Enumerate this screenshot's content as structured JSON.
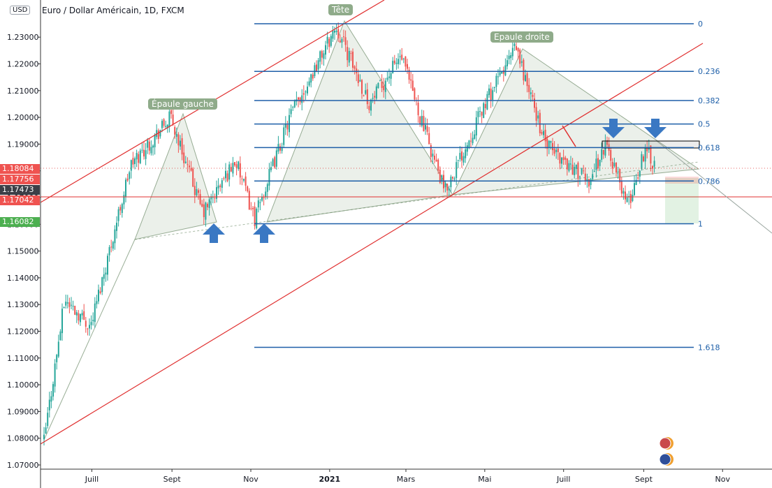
{
  "title": "Euro / Dollar Américain, 1D, FXCM",
  "currency_badge": "USD",
  "colors": {
    "up": "#26a69a",
    "down": "#ef5350",
    "fib": "#1e5fa8",
    "trend": "#e03030",
    "pattern": "#8fab8a",
    "arrow": "#3a78c3"
  },
  "chart_data": {
    "type": "candlestick",
    "title": "Euro / Dollar Américain, 1D, FXCM",
    "ylim": [
      1.07,
      1.24
    ],
    "y_ticks": [
      "1.23000",
      "1.22000",
      "1.21000",
      "1.20000",
      "1.19000",
      "1.18000",
      "1.17000",
      "1.16000",
      "1.15000",
      "1.14000",
      "1.13000",
      "1.12000",
      "1.11000",
      "1.10000",
      "1.09000",
      "1.08000",
      "1.07000"
    ],
    "x_ticks": [
      "Juill",
      "Sept",
      "Nov",
      "2021",
      "Mars",
      "Mai",
      "Juill",
      "Sept",
      "Nov"
    ],
    "price_path": [
      [
        "2020-05-25",
        1.079
      ],
      [
        "2020-06-10",
        1.132
      ],
      [
        "2020-06-30",
        1.122
      ],
      [
        "2020-07-31",
        1.182
      ],
      [
        "2020-08-31",
        1.2
      ],
      [
        "2020-09-25",
        1.164
      ],
      [
        "2020-10-20",
        1.184
      ],
      [
        "2020-11-04",
        1.162
      ],
      [
        "2020-12-01",
        1.2
      ],
      [
        "2021-01-06",
        1.234
      ],
      [
        "2021-02-01",
        1.205
      ],
      [
        "2021-02-25",
        1.223
      ],
      [
        "2021-03-31",
        1.172
      ],
      [
        "2021-05-01",
        1.205
      ],
      [
        "2021-05-25",
        1.226
      ],
      [
        "2021-06-17",
        1.19
      ],
      [
        "2021-07-20",
        1.176
      ],
      [
        "2021-08-03",
        1.19
      ],
      [
        "2021-08-20",
        1.167
      ],
      [
        "2021-09-03",
        1.19
      ],
      [
        "2021-09-10",
        1.181
      ]
    ],
    "fibonacci": [
      {
        "level": "0",
        "price": 1.235
      },
      {
        "level": "0.236",
        "price": 1.2172
      },
      {
        "level": "0.382",
        "price": 1.2063
      },
      {
        "level": "0.5",
        "price": 1.1975
      },
      {
        "level": "0.618",
        "price": 1.1887
      },
      {
        "level": "0.786",
        "price": 1.1762
      },
      {
        "level": "1",
        "price": 1.1602
      },
      {
        "level": "1.618",
        "price": 1.114
      }
    ],
    "annotations": [
      "Épaule gauche",
      "Tête",
      "Epaule droite"
    ],
    "price_labels": [
      {
        "value": "1.18084",
        "color": "#ef5350"
      },
      {
        "value": "1.17756",
        "color": "#ef5350"
      },
      {
        "value": "1.17473",
        "color": "#3c3f47"
      },
      {
        "value": "1.17042",
        "color": "#ef5350"
      },
      {
        "value": "1.16082",
        "color": "#4caf50"
      }
    ]
  }
}
